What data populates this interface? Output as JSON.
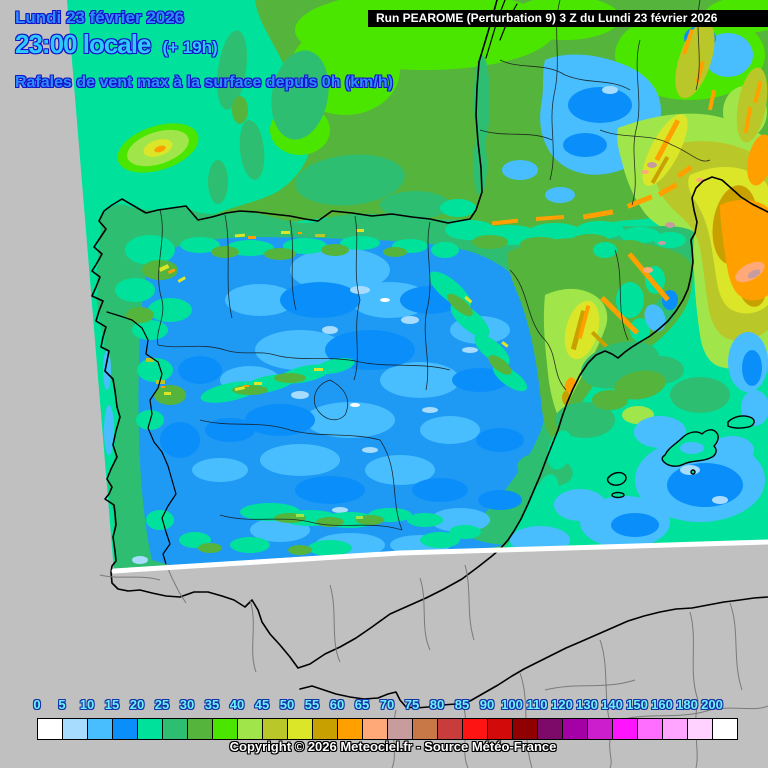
{
  "header": {
    "date_line": "Lundi 23 février 2026",
    "time_line": "23:00 locale",
    "time_offset": "(+ 19h)",
    "subtitle": "Rafales de vent max à la surface depuis 0h (km/h)",
    "date_color": "#2E8CFF",
    "time_color": "#2FC8FF"
  },
  "run_banner": {
    "text": "Run PEAROME (Perturbation 9) 3 Z du Lundi 23 février 2026",
    "bg": "#000000",
    "fg": "#FFFFFF"
  },
  "legend": {
    "label_color": "#6EF0FF",
    "labels": [
      "0",
      "5",
      "10",
      "15",
      "20",
      "25",
      "30",
      "35",
      "40",
      "45",
      "50",
      "55",
      "60",
      "65",
      "70",
      "75",
      "80",
      "85",
      "90",
      "100",
      "110",
      "120",
      "130",
      "140",
      "150",
      "160",
      "180",
      "200"
    ],
    "colors": [
      "#FFFFFF",
      "#A8DCFF",
      "#48BEFF",
      "#0A8EFA",
      "#00E29B",
      "#2DBE71",
      "#55B43C",
      "#4BE600",
      "#A0E64B",
      "#B9C828",
      "#DCE628",
      "#C8A000",
      "#FFA000",
      "#FFA878",
      "#C89C9C",
      "#C87846",
      "#C83C3C",
      "#FF1414",
      "#D20A0A",
      "#910000",
      "#7D0A69",
      "#A500A5",
      "#CD1ECD",
      "#FF14FF",
      "#FF6EFF",
      "#FFA5FF",
      "#FFD2FF",
      "#FFFFFF"
    ]
  },
  "footer": {
    "copyright": "Copyright © 2026 Meteociel.fr - Source Météo-France"
  }
}
